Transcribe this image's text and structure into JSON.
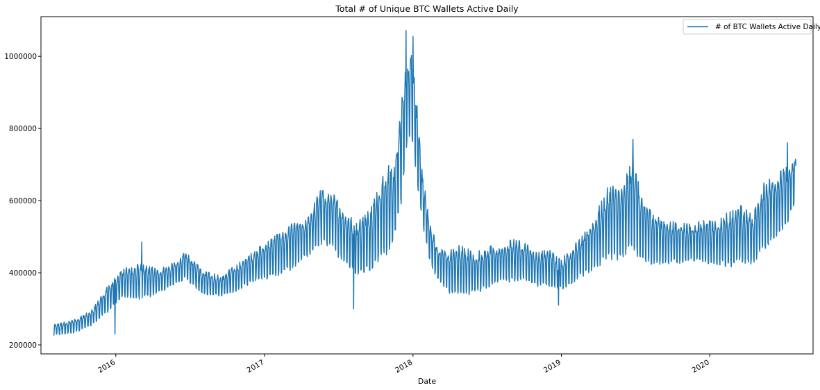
{
  "chart_data": {
    "type": "line",
    "title": "Total # of Unique BTC Wallets Active Daily",
    "xlabel": "Date",
    "ylabel": "",
    "xlim": [
      "2015-07-01",
      "2020-09-11"
    ],
    "ylim": [
      175000,
      1110000
    ],
    "x_ticks": [
      "2016",
      "2017",
      "2018",
      "2019",
      "2020"
    ],
    "y_ticks": [
      200000,
      400000,
      600000,
      800000,
      1000000
    ],
    "legend": {
      "position": "top-right",
      "entries": [
        "# of BTC Wallets Active Daily"
      ]
    },
    "grid": false,
    "color": "#1f77b4",
    "series": [
      {
        "name": "# of BTC Wallets Active Daily",
        "weekly_pattern": "weekday values near the upper envelope, weekend values near the lower envelope",
        "upper_envelope": {
          "x": [
            "2015-08-01",
            "2015-09-15",
            "2015-11-01",
            "2015-12-15",
            "2016-01-15",
            "2016-03-01",
            "2016-04-15",
            "2016-06-01",
            "2016-06-20",
            "2016-08-01",
            "2016-09-15",
            "2016-11-01",
            "2016-12-15",
            "2017-01-15",
            "2017-03-01",
            "2017-04-15",
            "2017-05-20",
            "2017-06-15",
            "2017-07-15",
            "2017-08-15",
            "2017-09-15",
            "2017-10-15",
            "2017-11-15",
            "2017-12-01",
            "2017-12-12",
            "2017-12-25",
            "2018-01-05",
            "2018-01-20",
            "2018-02-10",
            "2018-03-01",
            "2018-04-01",
            "2018-05-01",
            "2018-06-01",
            "2018-07-01",
            "2018-08-01",
            "2018-09-01",
            "2018-10-01",
            "2018-11-01",
            "2018-12-01",
            "2019-01-01",
            "2019-02-01",
            "2019-03-01",
            "2019-04-01",
            "2019-05-01",
            "2019-06-01",
            "2019-06-26",
            "2019-07-15",
            "2019-08-15",
            "2019-09-15",
            "2019-10-15",
            "2019-11-15",
            "2019-12-15",
            "2020-01-15",
            "2020-02-15",
            "2020-03-15",
            "2020-04-15",
            "2020-05-15",
            "2020-06-15",
            "2020-07-10",
            "2020-07-31"
          ],
          "y": [
            260000,
            275000,
            300000,
            380000,
            420000,
            440000,
            420000,
            440000,
            470000,
            420000,
            400000,
            440000,
            480000,
            510000,
            550000,
            560000,
            660000,
            650000,
            600000,
            560000,
            600000,
            700000,
            750000,
            900000,
            1000000,
            1070000,
            1000000,
            740000,
            560000,
            490000,
            480000,
            500000,
            470000,
            490000,
            490000,
            510000,
            500000,
            470000,
            480000,
            450000,
            490000,
            530000,
            600000,
            680000,
            660000,
            770000,
            640000,
            590000,
            560000,
            560000,
            550000,
            560000,
            560000,
            590000,
            610000,
            580000,
            680000,
            700000,
            720000,
            740000
          ]
        },
        "lower_envelope": {
          "x": [
            "2015-08-01",
            "2015-09-15",
            "2015-11-01",
            "2015-12-15",
            "2016-01-15",
            "2016-03-01",
            "2016-04-15",
            "2016-06-01",
            "2016-06-20",
            "2016-08-01",
            "2016-09-15",
            "2016-11-01",
            "2016-12-15",
            "2017-01-15",
            "2017-03-01",
            "2017-04-15",
            "2017-05-20",
            "2017-06-15",
            "2017-07-15",
            "2017-08-15",
            "2017-09-15",
            "2017-10-15",
            "2017-11-15",
            "2017-12-01",
            "2017-12-12",
            "2017-12-25",
            "2018-01-05",
            "2018-01-20",
            "2018-02-10",
            "2018-03-01",
            "2018-04-01",
            "2018-05-01",
            "2018-06-01",
            "2018-07-01",
            "2018-08-01",
            "2018-09-01",
            "2018-10-01",
            "2018-11-01",
            "2018-12-01",
            "2019-01-01",
            "2019-02-01",
            "2019-03-01",
            "2019-04-01",
            "2019-05-01",
            "2019-06-01",
            "2019-06-26",
            "2019-07-15",
            "2019-08-15",
            "2019-09-15",
            "2019-10-15",
            "2019-11-15",
            "2019-12-15",
            "2020-01-15",
            "2020-02-15",
            "2020-03-15",
            "2020-04-15",
            "2020-05-15",
            "2020-06-15",
            "2020-07-10",
            "2020-07-31"
          ],
          "y": [
            225000,
            230000,
            250000,
            290000,
            330000,
            320000,
            340000,
            370000,
            380000,
            340000,
            330000,
            350000,
            380000,
            380000,
            400000,
            440000,
            470000,
            460000,
            420000,
            390000,
            400000,
            430000,
            460000,
            560000,
            690000,
            780000,
            700000,
            560000,
            430000,
            380000,
            340000,
            330000,
            340000,
            350000,
            370000,
            370000,
            380000,
            360000,
            360000,
            350000,
            370000,
            390000,
            410000,
            430000,
            430000,
            460000,
            420000,
            420000,
            420000,
            420000,
            430000,
            420000,
            420000,
            410000,
            420000,
            420000,
            460000,
            500000,
            520000,
            600000
          ]
        },
        "annotations": [
          {
            "x": "2015-12-30",
            "y": 230000
          },
          {
            "x": "2016-03-05",
            "y": 485000
          },
          {
            "x": "2017-08-08",
            "y": 300000
          },
          {
            "x": "2017-12-15",
            "y": 1072000
          },
          {
            "x": "2018-01-01",
            "y": 1055000
          },
          {
            "x": "2018-12-25",
            "y": 310000
          },
          {
            "x": "2019-06-26",
            "y": 770000
          },
          {
            "x": "2020-07-10",
            "y": 760000
          }
        ]
      }
    ]
  }
}
